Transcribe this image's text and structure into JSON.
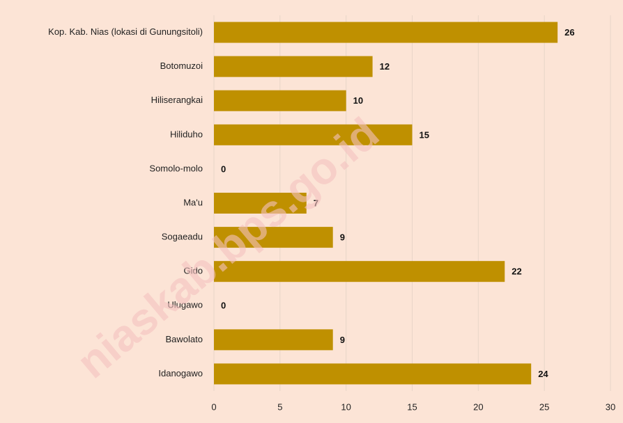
{
  "chart_data": {
    "type": "bar",
    "orientation": "horizontal",
    "categories": [
      "Kop. Kab. Nias  (lokasi di Gunungsitoli)",
      "Botomuzoi",
      "Hiliserangkai",
      "Hiliduho",
      "Somolo-molo",
      "Ma'u",
      "Sogaeadu",
      "Gido",
      "Ulugawo",
      "Bawolato",
      "Idanogawo"
    ],
    "values": [
      26,
      12,
      10,
      15,
      0,
      7,
      9,
      22,
      0,
      9,
      24
    ],
    "color": "#bf9000",
    "xlim": [
      0,
      30
    ],
    "xticks": [
      0,
      5,
      10,
      15,
      20,
      25,
      30
    ],
    "grid": true,
    "watermark": "niaskab.bps.go.id"
  }
}
